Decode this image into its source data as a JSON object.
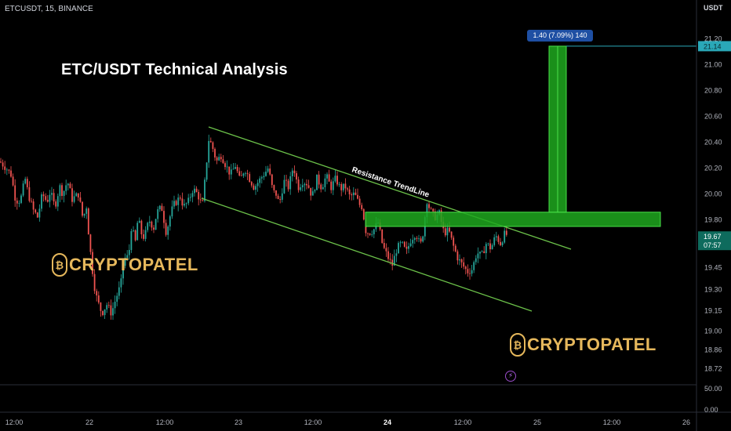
{
  "header": {
    "symbol_line": "ETCUSDT, 15, BINANCE",
    "currency": "USDT"
  },
  "title": "ETC/USDT Technical Analysis",
  "watermark": "CRYPTOPATEL",
  "annotations": {
    "resistance_label": "Resistance TrendLine",
    "measure_label": "1.40 (7.09%) 140"
  },
  "price_tags": {
    "target": "21.14",
    "current": "19.67",
    "countdown": "07:57"
  },
  "colors": {
    "background": "#000000",
    "up": "#26a69a",
    "down": "#ef5350",
    "channel": "#6cc24a",
    "zone": "#1fa81f",
    "target_line": "#2aa8b8",
    "current_tag": "#0e6b5d",
    "accent": "#1e4fa3"
  },
  "chart_data": {
    "type": "candlestick",
    "symbol": "ETCUSDT",
    "timeframe": "15",
    "exchange": "BINANCE",
    "title": "ETC/USDT Technical Analysis",
    "x_tick_labels": [
      "12:00",
      "22",
      "12:00",
      "23",
      "12:00",
      "24",
      "12:00",
      "25",
      "12:00",
      "26"
    ],
    "y_tick_labels": [
      "21.20",
      "21.00",
      "20.80",
      "20.60",
      "20.40",
      "20.20",
      "20.00",
      "19.80",
      "19.60",
      "19.45",
      "19.30",
      "19.15",
      "19.00",
      "18.86",
      "18.72"
    ],
    "volume_tick_labels": [
      "50.00",
      "0.00"
    ],
    "ylim": [
      18.7,
      21.3
    ],
    "grid": false,
    "price_path": [
      [
        0,
        20.25
      ],
      [
        8,
        20.2
      ],
      [
        14,
        20.15
      ],
      [
        20,
        19.95
      ],
      [
        26,
        19.95
      ],
      [
        32,
        20.12
      ],
      [
        36,
        20.0
      ],
      [
        42,
        19.88
      ],
      [
        48,
        19.82
      ],
      [
        54,
        20.0
      ],
      [
        60,
        19.94
      ],
      [
        64,
        20.02
      ],
      [
        70,
        19.9
      ],
      [
        76,
        20.06
      ],
      [
        80,
        20.0
      ],
      [
        86,
        20.1
      ],
      [
        92,
        19.96
      ],
      [
        100,
        20.0
      ],
      [
        106,
        19.8
      ],
      [
        110,
        19.92
      ],
      [
        114,
        19.62
      ],
      [
        120,
        19.3
      ],
      [
        124,
        19.18
      ],
      [
        130,
        19.08
      ],
      [
        136,
        19.15
      ],
      [
        142,
        19.08
      ],
      [
        148,
        19.2
      ],
      [
        154,
        19.3
      ],
      [
        158,
        19.5
      ],
      [
        164,
        19.52
      ],
      [
        168,
        19.78
      ],
      [
        172,
        19.6
      ],
      [
        176,
        19.82
      ],
      [
        180,
        19.7
      ],
      [
        184,
        19.66
      ],
      [
        190,
        19.8
      ],
      [
        196,
        19.74
      ],
      [
        200,
        19.86
      ],
      [
        206,
        19.9
      ],
      [
        212,
        19.7
      ],
      [
        218,
        19.86
      ],
      [
        222,
        19.92
      ],
      [
        230,
        19.98
      ],
      [
        234,
        19.9
      ],
      [
        240,
        19.94
      ],
      [
        246,
        20.04
      ],
      [
        252,
        20.0
      ],
      [
        258,
        19.9
      ],
      [
        262,
        20.15
      ],
      [
        266,
        20.42
      ],
      [
        270,
        20.38
      ],
      [
        276,
        20.25
      ],
      [
        282,
        20.3
      ],
      [
        288,
        20.22
      ],
      [
        294,
        20.15
      ],
      [
        300,
        20.22
      ],
      [
        306,
        20.1
      ],
      [
        312,
        20.2
      ],
      [
        318,
        20.12
      ],
      [
        324,
        20.05
      ],
      [
        330,
        20.1
      ],
      [
        336,
        20.15
      ],
      [
        342,
        20.2
      ],
      [
        348,
        20.02
      ],
      [
        352,
        20.0
      ],
      [
        356,
        19.92
      ],
      [
        362,
        20.1
      ],
      [
        368,
        20.05
      ],
      [
        374,
        20.22
      ],
      [
        380,
        20.05
      ],
      [
        386,
        20.1
      ],
      [
        392,
        20.08
      ],
      [
        398,
        19.98
      ],
      [
        404,
        20.12
      ],
      [
        410,
        20.05
      ],
      [
        416,
        20.14
      ],
      [
        422,
        20.05
      ],
      [
        428,
        20.12
      ],
      [
        434,
        20.04
      ],
      [
        440,
        20.06
      ],
      [
        446,
        19.98
      ],
      [
        452,
        20.0
      ],
      [
        458,
        19.92
      ],
      [
        462,
        19.9
      ],
      [
        466,
        19.72
      ],
      [
        470,
        19.7
      ],
      [
        476,
        19.72
      ],
      [
        482,
        19.78
      ],
      [
        488,
        19.6
      ],
      [
        494,
        19.52
      ],
      [
        500,
        19.45
      ],
      [
        506,
        19.58
      ],
      [
        512,
        19.62
      ],
      [
        518,
        19.55
      ],
      [
        524,
        19.65
      ],
      [
        530,
        19.7
      ],
      [
        536,
        19.6
      ],
      [
        540,
        19.72
      ],
      [
        544,
        19.96
      ],
      [
        548,
        19.88
      ],
      [
        554,
        19.82
      ],
      [
        560,
        19.85
      ],
      [
        566,
        19.7
      ],
      [
        572,
        19.72
      ],
      [
        578,
        19.6
      ],
      [
        584,
        19.5
      ],
      [
        590,
        19.45
      ],
      [
        596,
        19.4
      ],
      [
        602,
        19.42
      ],
      [
        608,
        19.55
      ],
      [
        614,
        19.52
      ],
      [
        620,
        19.62
      ],
      [
        626,
        19.58
      ],
      [
        632,
        19.68
      ],
      [
        638,
        19.62
      ],
      [
        644,
        19.7
      ],
      [
        648,
        19.67
      ]
    ],
    "current_price": 19.67,
    "target_price": 21.14,
    "resistance_zone": [
      19.75,
      19.86
    ],
    "measure": {
      "from": 19.74,
      "to": 21.14,
      "change": 1.4,
      "percent": 7.09,
      "ticks": 140
    }
  }
}
